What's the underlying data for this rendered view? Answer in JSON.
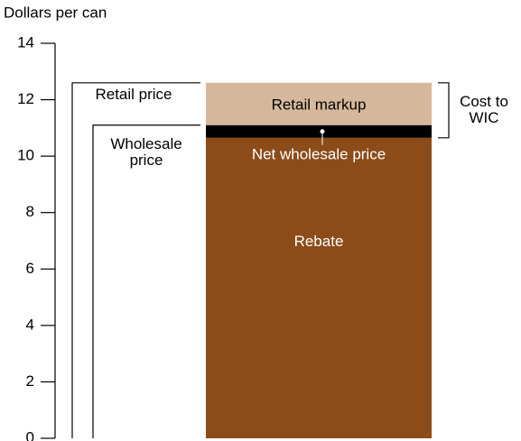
{
  "chart_data": {
    "type": "bar",
    "y_axis_label": "Dollars per can",
    "ylim": [
      0,
      14
    ],
    "yticks": [
      0,
      2,
      4,
      6,
      8,
      10,
      12,
      14
    ],
    "outline_bars": [
      {
        "name": "Retail price",
        "value": 12.6
      },
      {
        "name": "Wholesale price",
        "value": 11.1
      }
    ],
    "series": [
      {
        "name": "Rebate",
        "color": "#8b4c1a",
        "values": [
          10.65
        ]
      },
      {
        "name": "Net wholesale price",
        "color": "#000000",
        "values": [
          0.45
        ]
      },
      {
        "name": "Retail markup",
        "color": "#d5b89b",
        "values": [
          1.5
        ]
      }
    ],
    "annotation": "Cost to WIC"
  }
}
